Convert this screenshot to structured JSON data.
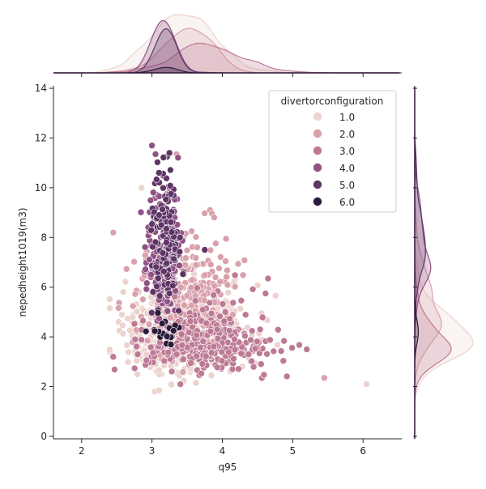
{
  "chart_data": {
    "type": "scatter",
    "subtype": "jointplot with marginal KDE",
    "xlabel": "q95",
    "ylabel": "nepedheight1019(m3)",
    "xlim": [
      1.6,
      6.55
    ],
    "ylim": [
      -0.1,
      14.1
    ],
    "xticks": [
      "2",
      "3",
      "4",
      "5",
      "6"
    ],
    "yticks": [
      "0",
      "2",
      "4",
      "6",
      "8",
      "10",
      "12",
      "14"
    ],
    "grid": false,
    "legend": {
      "title": "divertorconfiguration",
      "placement": "top-right",
      "entries": [
        "1.0",
        "2.0",
        "3.0",
        "4.0",
        "5.0",
        "6.0"
      ]
    },
    "series_colors": [
      "#ecd3cd",
      "#d9a1ab",
      "#bd7a94",
      "#8f5285",
      "#5e3566",
      "#2b1b3a"
    ],
    "series": [
      {
        "name": "1.0",
        "approx_count": 600,
        "center": {
          "x": 3.45,
          "y": 3.9
        },
        "spread": {
          "x": 0.42,
          "y": 1.1
        },
        "notable_points": [
          {
            "x": 6.05,
            "y": 2.1
          },
          {
            "x": 3.1,
            "y": 1.85
          },
          {
            "x": 2.85,
            "y": 10.0
          }
        ]
      },
      {
        "name": "2.0",
        "approx_count": 350,
        "center": {
          "x": 3.5,
          "y": 4.9
        },
        "spread": {
          "x": 0.35,
          "y": 1.6
        },
        "notable_points": [
          {
            "x": 3.35,
            "y": 11.35
          },
          {
            "x": 2.45,
            "y": 8.2
          },
          {
            "x": 5.45,
            "y": 2.35
          }
        ]
      },
      {
        "name": "3.0",
        "approx_count": 300,
        "center": {
          "x": 3.8,
          "y": 3.6
        },
        "spread": {
          "x": 0.45,
          "y": 0.9
        },
        "notable_points": [
          {
            "x": 4.65,
            "y": 6.35
          },
          {
            "x": 2.45,
            "y": 3.2
          },
          {
            "x": 5.2,
            "y": 3.5
          }
        ]
      },
      {
        "name": "4.0",
        "approx_count": 200,
        "center": {
          "x": 3.15,
          "y": 7.2
        },
        "spread": {
          "x": 0.12,
          "y": 1.6
        },
        "notable_points": [
          {
            "x": 3.0,
            "y": 11.7
          },
          {
            "x": 3.05,
            "y": 11.35
          },
          {
            "x": 3.75,
            "y": 7.5
          }
        ]
      },
      {
        "name": "5.0",
        "approx_count": 150,
        "center": {
          "x": 3.2,
          "y": 7.5
        },
        "spread": {
          "x": 0.1,
          "y": 1.6
        },
        "notable_points": [
          {
            "x": 3.1,
            "y": 10.6
          },
          {
            "x": 3.75,
            "y": 7.5
          }
        ]
      },
      {
        "name": "6.0",
        "approx_count": 20,
        "center": {
          "x": 3.2,
          "y": 4.1
        },
        "spread": {
          "x": 0.15,
          "y": 0.35
        },
        "notable_points": []
      }
    ]
  }
}
